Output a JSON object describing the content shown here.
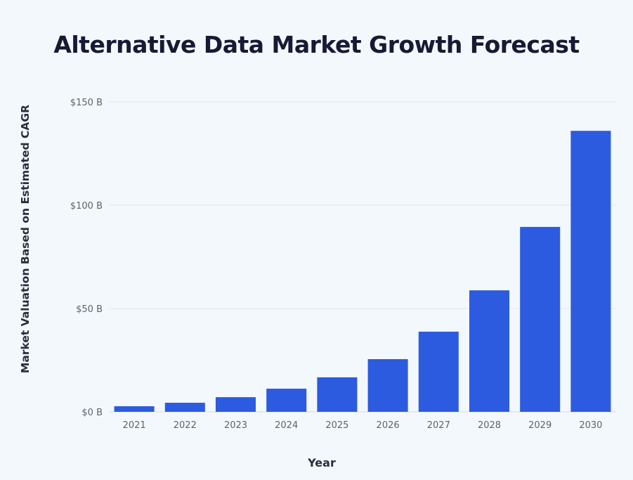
{
  "chart_data": {
    "type": "bar",
    "title": "Alternative Data Market Growth Forecast",
    "xlabel": "Year",
    "ylabel": "Market Valuation Based on Estimated CAGR",
    "categories": [
      "2021",
      "2022",
      "2023",
      "2024",
      "2025",
      "2026",
      "2027",
      "2028",
      "2029",
      "2030"
    ],
    "values": [
      2.7,
      4.4,
      7.1,
      11.2,
      16.7,
      25.5,
      38.8,
      58.8,
      89.5,
      136.0
    ],
    "ylim": [
      0,
      150
    ],
    "yticks": [
      0,
      50,
      100,
      150
    ],
    "ytick_labels": [
      "$0 B",
      "$50 B",
      "$100 B",
      "$150 B"
    ],
    "grid": true,
    "legend": "none",
    "bar_color": "#2c5be0",
    "units": "billion USD"
  }
}
